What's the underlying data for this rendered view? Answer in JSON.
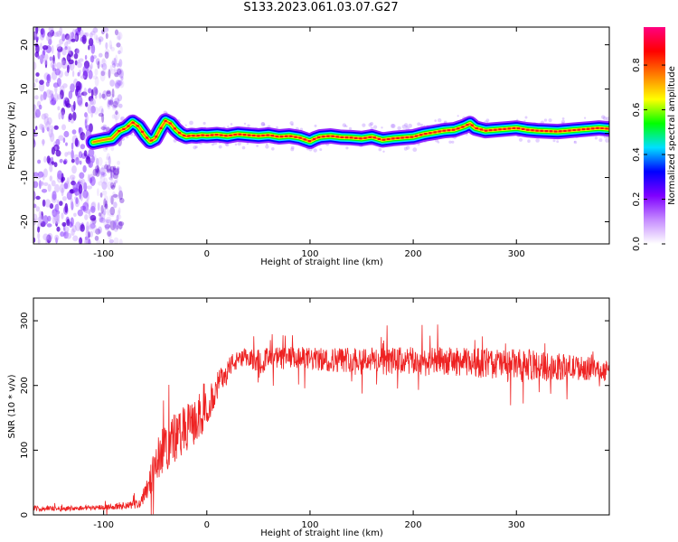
{
  "figure": {
    "title": "S133.2023.061.03.07.G27"
  },
  "chart_data": [
    {
      "type": "heatmap",
      "title": "S133.2023.061.03.07.G27",
      "xlabel": "Height of straight line (km)",
      "ylabel": "Frequency (Hz)",
      "xlim": [
        -168,
        390
      ],
      "ylim": [
        -25,
        24
      ],
      "x_ticks": [
        -100,
        0,
        100,
        200,
        300
      ],
      "y_ticks": [
        -20,
        -10,
        0,
        10,
        20
      ],
      "grid": false,
      "colorbar": {
        "label": "Normalized spectral amplitude",
        "range": [
          0,
          0.97
        ],
        "ticks": [
          0.0,
          0.2,
          0.4,
          0.6,
          0.8
        ],
        "colormap": [
          "#ffffff",
          "#c58bff",
          "#7f00ff",
          "#0000ff",
          "#00e0ff",
          "#00ff00",
          "#ffff00",
          "#ff7f00",
          "#ff0000",
          "#ff0080"
        ]
      },
      "noise_region_x": [
        -168,
        -92
      ],
      "ridge": {
        "x": [
          -110,
          -100,
          -92,
          -85,
          -78,
          -72,
          -66,
          -60,
          -55,
          -50,
          -45,
          -40,
          -35,
          -30,
          -25,
          -20,
          -15,
          -10,
          -5,
          0,
          10,
          20,
          30,
          40,
          50,
          60,
          70,
          80,
          90,
          95,
          100,
          105,
          110,
          120,
          130,
          140,
          150,
          160,
          170,
          180,
          190,
          200,
          210,
          220,
          230,
          240,
          250,
          255,
          260,
          270,
          280,
          290,
          300,
          310,
          320,
          330,
          340,
          350,
          360,
          370,
          380,
          390
        ],
        "y": [
          -2,
          -1.5,
          -1.2,
          0.5,
          1.2,
          2.5,
          1.5,
          -0.5,
          -1.8,
          -1.2,
          1.0,
          2.8,
          2.2,
          0.8,
          -0.2,
          -0.7,
          -0.5,
          -0.6,
          -0.4,
          -0.5,
          -0.3,
          -0.6,
          -0.2,
          -0.4,
          -0.6,
          -0.4,
          -0.8,
          -0.6,
          -1.0,
          -1.4,
          -1.8,
          -1.2,
          -0.8,
          -0.6,
          -0.9,
          -1.0,
          -1.2,
          -0.8,
          -1.5,
          -1.2,
          -1.0,
          -0.8,
          -0.2,
          0.2,
          0.6,
          0.8,
          1.6,
          2.2,
          1.2,
          0.6,
          0.8,
          1.0,
          1.2,
          0.8,
          0.6,
          0.5,
          0.4,
          0.6,
          0.8,
          1.0,
          1.2,
          1.0
        ]
      }
    },
    {
      "type": "line",
      "xlabel": "Height of straight line (km)",
      "ylabel": "SNR (10 * v/v)",
      "xlim": [
        -168,
        390
      ],
      "ylim": [
        0,
        335
      ],
      "x_ticks": [
        -100,
        0,
        100,
        200,
        300
      ],
      "y_ticks": [
        0,
        100,
        200,
        300
      ],
      "grid": false,
      "series": [
        {
          "color": "#ee2222",
          "x": [
            -168,
            -140,
            -120,
            -100,
            -80,
            -65,
            -55,
            -45,
            -35,
            -25,
            -15,
            -5,
            5,
            15,
            25,
            35,
            50,
            70,
            90,
            110,
            130,
            150,
            170,
            190,
            210,
            230,
            250,
            270,
            290,
            310,
            330,
            350,
            370,
            390
          ],
          "y": [
            10,
            10,
            11,
            12,
            13,
            18,
            55,
            95,
            115,
            125,
            140,
            150,
            180,
            215,
            235,
            240,
            240,
            242,
            242,
            240,
            240,
            242,
            238,
            238,
            236,
            238,
            236,
            235,
            233,
            232,
            230,
            228,
            226,
            222
          ],
          "noise_amplitude": [
            4,
            4,
            4,
            4,
            5,
            8,
            25,
            35,
            40,
            40,
            35,
            30,
            25,
            20,
            15,
            15,
            18,
            18,
            18,
            18,
            20,
            20,
            20,
            22,
            22,
            22,
            22,
            24,
            24,
            24,
            22,
            20,
            18,
            16
          ]
        }
      ]
    }
  ]
}
